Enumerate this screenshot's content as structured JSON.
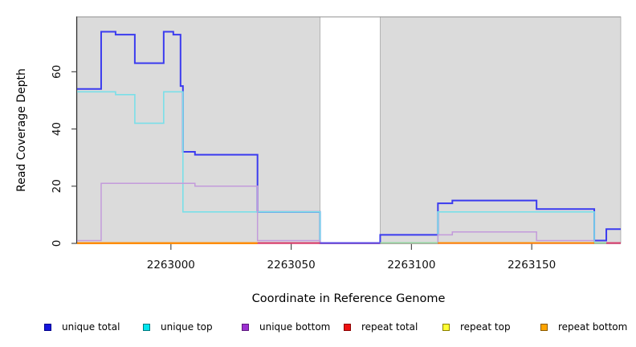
{
  "chart_data": {
    "type": "line",
    "step_style": "step-after",
    "title": "",
    "xlabel": "Coordinate in Reference Genome",
    "ylabel": "Read Coverage Depth",
    "xlim": [
      2262961,
      2263187
    ],
    "ylim": [
      0,
      79
    ],
    "x_ticks": [
      2263000,
      2263050,
      2263100,
      2263150
    ],
    "y_ticks": [
      0,
      20,
      40,
      60
    ],
    "grid": false,
    "panel_color": "#DBDBDB",
    "panel_border_color": "#A8A8A8",
    "background_panels": [
      {
        "from": 2262961,
        "to": 2263062
      },
      {
        "from": 2263087,
        "to": 2263187
      }
    ],
    "gap_region": {
      "from": 2263062,
      "to": 2263087,
      "color": "#FFFFFF"
    },
    "series": [
      {
        "name": "unique total",
        "color": "#3B3BEF",
        "width": 2,
        "points": [
          [
            2262961,
            54
          ],
          [
            2262971,
            74
          ],
          [
            2262977,
            73
          ],
          [
            2262985,
            63
          ],
          [
            2262997,
            74
          ],
          [
            2263001,
            73
          ],
          [
            2263004,
            55
          ],
          [
            2263005,
            32
          ],
          [
            2263010,
            31
          ],
          [
            2263036,
            11
          ],
          [
            2263062,
            0
          ],
          [
            2263087,
            3
          ],
          [
            2263111,
            14
          ],
          [
            2263117,
            15
          ],
          [
            2263152,
            12
          ],
          [
            2263176,
            1
          ],
          [
            2263181,
            5
          ],
          [
            2263187,
            5
          ]
        ]
      },
      {
        "name": "unique top",
        "color": "#7ADFE8",
        "width": 1.6,
        "points": [
          [
            2262961,
            53
          ],
          [
            2262977,
            52
          ],
          [
            2262985,
            42
          ],
          [
            2262997,
            53
          ],
          [
            2263005,
            11
          ],
          [
            2263062,
            0
          ],
          [
            2263111,
            11
          ],
          [
            2263176,
            0
          ],
          [
            2263187,
            0
          ]
        ]
      },
      {
        "name": "unique bottom",
        "color": "#C39BDB",
        "width": 1.5,
        "points": [
          [
            2262961,
            1
          ],
          [
            2262971,
            21
          ],
          [
            2263010,
            20
          ],
          [
            2263036,
            1
          ],
          [
            2263062,
            0
          ],
          [
            2263087,
            0
          ],
          [
            2263111,
            3
          ],
          [
            2263117,
            4
          ],
          [
            2263152,
            1
          ],
          [
            2263176,
            1
          ]
        ]
      },
      {
        "name": "repeat total",
        "color": "#D8406E",
        "width": 1.5,
        "points": [
          [
            2262961,
            0
          ],
          [
            2263187,
            0
          ]
        ]
      },
      {
        "name": "repeat top",
        "color": "#F5F151",
        "width": 1.5,
        "points": [
          [
            2262961,
            0
          ],
          [
            2263036,
            0
          ]
        ]
      },
      {
        "name": "repeat bottom",
        "color": "#FF8C00",
        "width": 2,
        "points": [
          [
            2262961,
            0
          ],
          [
            2263036,
            0
          ]
        ]
      }
    ],
    "baseline_segments": [
      {
        "from": 2262961,
        "to": 2263036,
        "color": "#FF8C00"
      },
      {
        "from": 2263036,
        "to": 2263062,
        "color": "#D8406E"
      },
      {
        "from": 2263062,
        "to": 2263087,
        "color": "#5B49E6"
      },
      {
        "from": 2263087,
        "to": 2263111,
        "color": "#93D5A0"
      },
      {
        "from": 2263111,
        "to": 2263176,
        "color": "#FF8C00"
      },
      {
        "from": 2263176,
        "to": 2263181,
        "color": "#93D5A0"
      },
      {
        "from": 2263181,
        "to": 2263187,
        "color": "#D8406E"
      }
    ],
    "legend": [
      {
        "label": "unique total",
        "fill": "#1515DD",
        "border": "#00008B"
      },
      {
        "label": "unique top",
        "fill": "#00E5EE",
        "border": "#007A80"
      },
      {
        "label": "unique bottom",
        "fill": "#9B30D0",
        "border": "#5E1A7E"
      },
      {
        "label": "repeat total",
        "fill": "#EE1111",
        "border": "#8B0000"
      },
      {
        "label": "repeat top",
        "fill": "#FFFF33",
        "border": "#8B8000"
      },
      {
        "label": "repeat bottom",
        "fill": "#FFA500",
        "border": "#8B5A00"
      }
    ],
    "legend_position": "bottom"
  }
}
